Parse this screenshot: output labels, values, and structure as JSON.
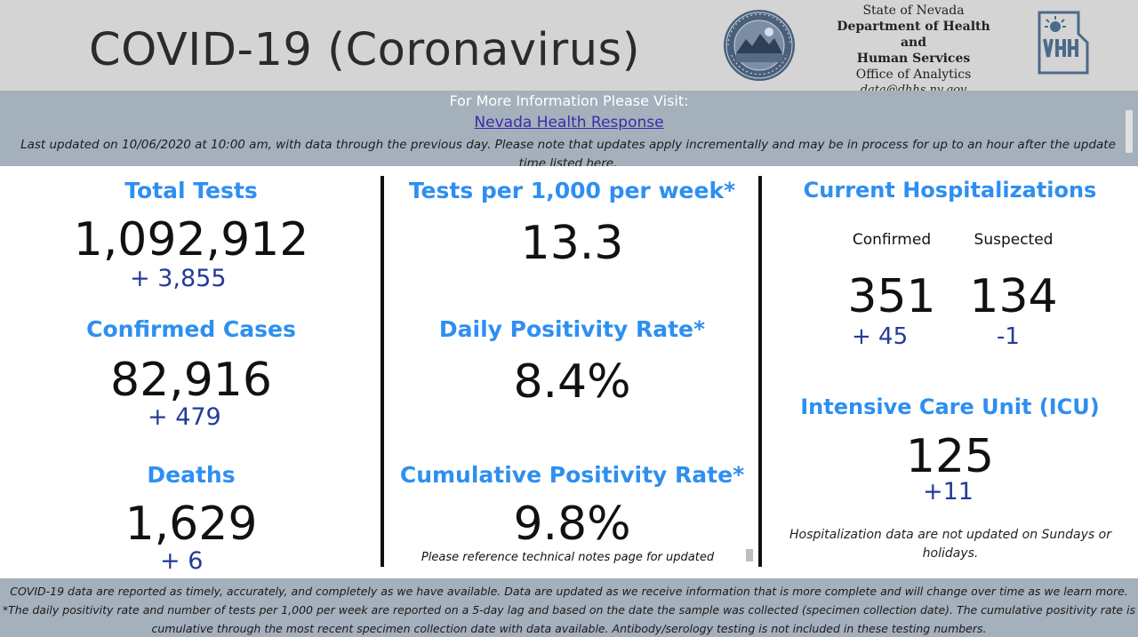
{
  "header": {
    "title": "COVID-19 (Coronavirus)",
    "agency": {
      "state": "State of Nevada",
      "dept_line1": "Department of Health and",
      "dept_line2": "Human Services",
      "office": "Office of Analytics",
      "email": "data@dhhs.nv.gov"
    },
    "seal_icon": "nevada-state-seal",
    "logo_icon": "dhhs-logo"
  },
  "info": {
    "visit": "For More Information Please Visit:",
    "link": "Nevada Health Response",
    "updated": "Last updated on 10/06/2020 at 10:00 am, with data through the previous day.  Please note that updates apply incrementally and may be in process for up to an hour after the update time listed here."
  },
  "col1": {
    "tests_head": "Total Tests",
    "tests_value": "1,092,912",
    "tests_delta": "+  3,855",
    "cases_head": "Confirmed Cases",
    "cases_value": "82,916",
    "cases_delta": "+ 479",
    "deaths_head": "Deaths",
    "deaths_value": "1,629",
    "deaths_delta": "+ 6"
  },
  "col2": {
    "tpk_head": "Tests per 1,000 per week*",
    "tpk_value": "13.3",
    "daily_head": "Daily Positivity Rate*",
    "daily_value": "8.4%",
    "cum_head": "Cumulative Positivity Rate*",
    "cum_value": "9.8%",
    "note": "Please reference technical notes page for updated"
  },
  "col3": {
    "hosp_head": "Current Hospitalizations",
    "confirmed_label": "Confirmed",
    "suspected_label": "Suspected",
    "confirmed_value": "351",
    "suspected_value": "134",
    "confirmed_delta": "+ 45",
    "suspected_delta": "-1",
    "icu_head": "Intensive Care Unit (ICU)",
    "icu_value": "125",
    "icu_delta": "+11",
    "hosp_note": "Hospitalization data are not updated on Sundays or holidays."
  },
  "footer": {
    "line1": "COVID-19 data are reported as timely, accurately, and completely as we have available.  Data are updated as we receive information that is more complete and will change over time as we learn more.",
    "line2": "*The daily positivity rate and number of tests per 1,000 per week are reported on a 5-day lag and based on the date the sample was collected (specimen collection date).  The cumulative positivity rate is",
    "line3": "cumulative through the most recent specimen collection date with data available.  Antibody/serology testing is not included in these testing numbers."
  },
  "colors": {
    "heading_blue": "#2e8ff0",
    "delta_navy": "#243a9a",
    "bar_gray": "#a4b0bc",
    "header_gray": "#d4d4d4"
  }
}
